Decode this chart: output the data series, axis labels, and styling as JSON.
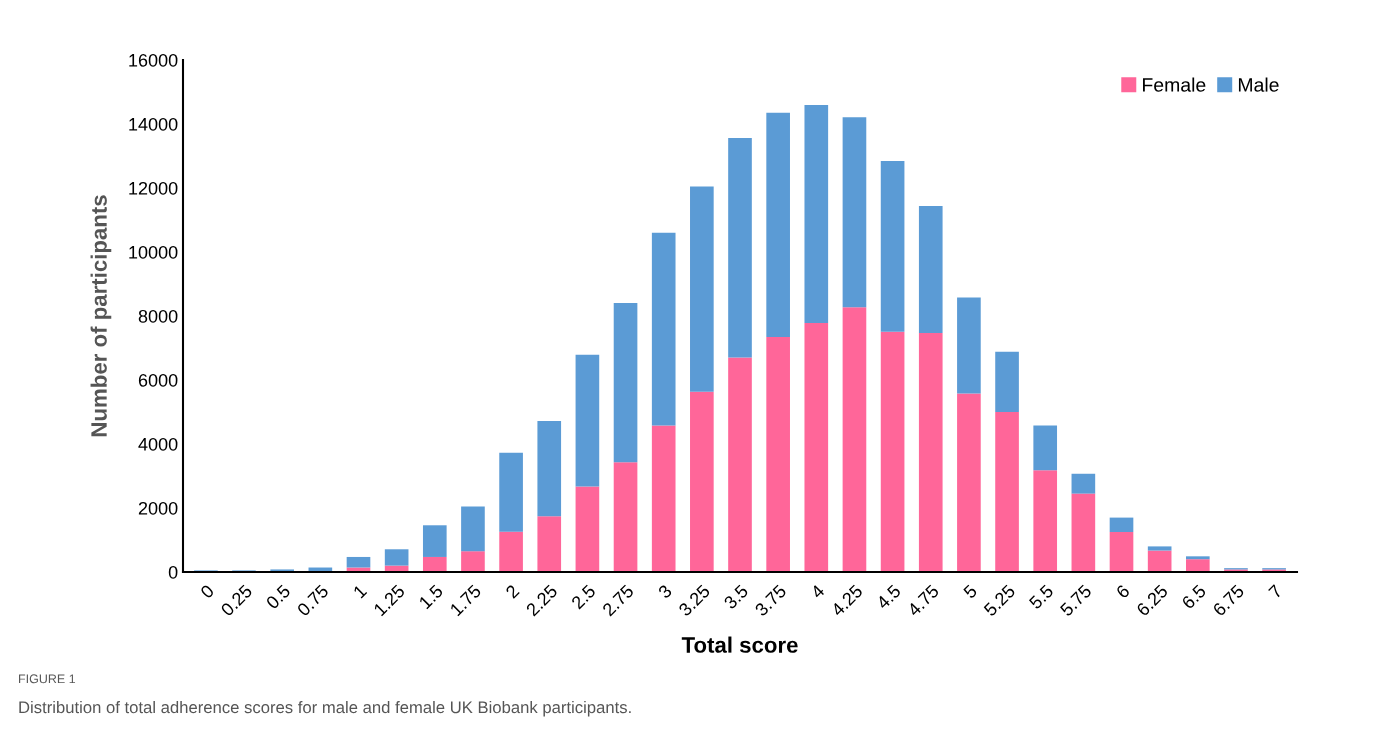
{
  "chart_data": {
    "type": "bar",
    "stacked": true,
    "xlabel": "Total score",
    "ylabel": "Number of participants",
    "categories": [
      "0",
      "0.25",
      "0.5",
      "0.75",
      "1",
      "1.25",
      "1.5",
      "1.75",
      "2",
      "2.25",
      "2.5",
      "2.75",
      "3",
      "3.25",
      "3.5",
      "3.75",
      "4",
      "4.25",
      "4.5",
      "4.75",
      "5",
      "5.25",
      "5.5",
      "5.75",
      "6",
      "6.25",
      "6.5",
      "6.75",
      "7"
    ],
    "series": [
      {
        "name": "Female",
        "color": "#ff6699",
        "values": [
          0,
          0,
          0,
          0,
          140,
          200,
          470,
          650,
          1260,
          1740,
          2670,
          3430,
          4580,
          5630,
          6700,
          7340,
          7780,
          8270,
          7510,
          7470,
          5580,
          5000,
          3180,
          2450,
          1250,
          670,
          400,
          80,
          80
        ]
      },
      {
        "name": "Male",
        "color": "#5b9bd5",
        "values": [
          50,
          50,
          80,
          140,
          330,
          510,
          990,
          1400,
          2470,
          2980,
          4120,
          4980,
          6020,
          6420,
          6860,
          7010,
          6810,
          5940,
          5330,
          3970,
          3000,
          1880,
          1400,
          620,
          450,
          130,
          90,
          40,
          40
        ]
      }
    ],
    "ylim": [
      0,
      16000
    ],
    "yticks": [
      0,
      2000,
      4000,
      6000,
      8000,
      10000,
      12000,
      14000,
      16000
    ],
    "grid": false,
    "legend": "top right",
    "annotations": [
      "FIGURE 1",
      "Distribution of total adherence scores for male and female UK Biobank participants."
    ]
  }
}
